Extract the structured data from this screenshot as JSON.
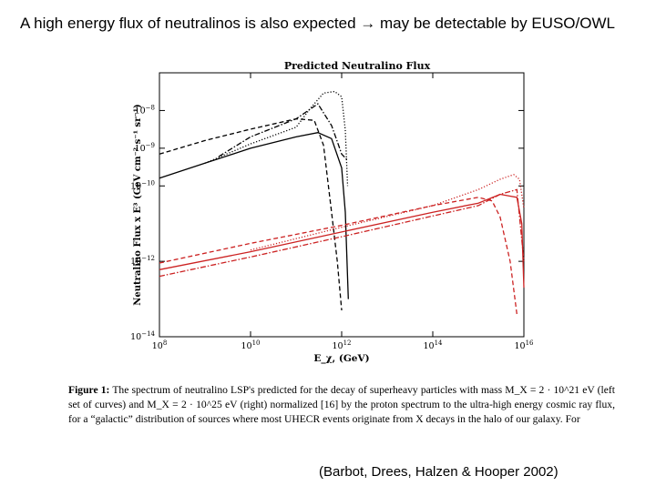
{
  "slide": {
    "title": "A high energy flux of neutralinos is also expected → may be detectable by EUSO/OWL",
    "citation": "(Barbot, Drees, Halzen & Hooper 2002)"
  },
  "caption": {
    "label": "Figure 1:",
    "text": "The spectrum of neutralino LSP's predicted for the decay of superheavy particles with mass M_X = 2 · 10^21 eV (left set of curves) and M_X = 2 · 10^25 eV (right) normalized [16] by the proton spectrum to the ultra-high energy cosmic ray flux, for a “galactic” distribution of sources where most UHECR events originate from X decays in the halo of our galaxy. For"
  },
  "chart_data": {
    "type": "line",
    "title": "Predicted Neutralino Flux",
    "xlabel": "E_χ, (GeV)",
    "ylabel": "Neutralino Flux x E³ (GeV cm⁻² s⁻¹ sr⁻¹)",
    "xscale": "log",
    "yscale": "log",
    "xlim": [
      100000000.0,
      1e+16
    ],
    "ylim": [
      1e-14,
      1e-07
    ],
    "xticks": [
      {
        "value": 100000000.0,
        "base": "10",
        "exp": "8"
      },
      {
        "value": 10000000000.0,
        "base": "10",
        "exp": "10"
      },
      {
        "value": 1000000000000.0,
        "base": "10",
        "exp": "12"
      },
      {
        "value": 100000000000000.0,
        "base": "10",
        "exp": "14"
      },
      {
        "value": 1e+16,
        "base": "10",
        "exp": "16"
      }
    ],
    "yticks": [
      {
        "value": 1e-14,
        "base": "10",
        "exp": "−14"
      },
      {
        "value": 1e-12,
        "base": "10",
        "exp": "−12"
      },
      {
        "value": 1e-10,
        "base": "10",
        "exp": "−10"
      },
      {
        "value": 1e-09,
        "base": "10",
        "exp": "−9"
      },
      {
        "value": 1e-08,
        "base": "10",
        "exp": "−8"
      }
    ],
    "colors": {
      "left": "#000000",
      "right": "#cc2222"
    },
    "series": [
      {
        "group": "left",
        "style": "solid",
        "color": "#000000",
        "x": [
          100000000.0,
          1000000000.0,
          10000000000.0,
          100000000000.0,
          300000000000.0,
          600000000000.0,
          1000000000000.0,
          1200000000000.0,
          1400000000000.0
        ],
        "y": [
          1.6e-10,
          4e-10,
          1e-09,
          2e-09,
          2.6e-09,
          1.8e-09,
          3e-10,
          2e-11,
          1e-13
        ]
      },
      {
        "group": "left",
        "style": "dashed",
        "color": "#000000",
        "x": [
          100000000.0,
          1000000000.0,
          10000000000.0,
          100000000000.0,
          250000000000.0,
          400000000000.0,
          600000000000.0,
          800000000000.0,
          1000000000000.0
        ],
        "y": [
          7e-10,
          1.6e-09,
          3.2e-09,
          6e-09,
          5.5e-09,
          1.2e-09,
          2e-11,
          1e-12,
          5e-14
        ]
      },
      {
        "group": "left",
        "style": "dotted",
        "color": "#000000",
        "x": [
          1000000000.0,
          10000000000.0,
          100000000000.0,
          200000000000.0,
          400000000000.0,
          700000000000.0,
          1000000000000.0,
          1200000000000.0,
          1350000000000.0
        ],
        "y": [
          4e-10,
          1.3e-09,
          3.6e-09,
          1.1e-08,
          2.9e-08,
          3.2e-08,
          2.3e-08,
          3e-09,
          1e-10
        ]
      },
      {
        "group": "left",
        "style": "dashdot",
        "color": "#000000",
        "x": [
          2000000000.0,
          10000000000.0,
          100000000000.0,
          300000000000.0,
          600000000000.0,
          800000000000.0,
          1000000000000.0,
          1300000000000.0
        ],
        "y": [
          6e-10,
          2e-09,
          6e-09,
          1.5e-08,
          4e-09,
          1.5e-09,
          7e-10,
          5e-10
        ]
      },
      {
        "group": "right",
        "style": "solid",
        "color": "#cc2222",
        "x": [
          100000000.0,
          10000000000.0,
          1000000000000.0,
          100000000000000.0,
          1000000000000000.0,
          3000000000000000.0,
          7000000000000000.0,
          9000000000000000.0,
          1e+16
        ],
        "y": [
          6e-13,
          1.8e-12,
          6e-12,
          2e-11,
          3.5e-11,
          6e-11,
          5e-11,
          1e-11,
          2e-13
        ]
      },
      {
        "group": "right",
        "style": "dashed",
        "color": "#cc2222",
        "x": [
          100000000.0,
          10000000000.0,
          1000000000000.0,
          100000000000000.0,
          1000000000000000.0,
          2000000000000000.0,
          3000000000000000.0,
          5000000000000000.0,
          7000000000000000.0
        ],
        "y": [
          9e-13,
          3e-12,
          9e-12,
          3e-11,
          5e-11,
          4e-11,
          1.5e-11,
          1e-12,
          4e-14
        ]
      },
      {
        "group": "right",
        "style": "dotted",
        "color": "#cc2222",
        "x": [
          10000000000.0,
          1000000000000.0,
          100000000000000.0,
          1000000000000000.0,
          3000000000000000.0,
          6000000000000000.0,
          8000000000000000.0,
          1e+16
        ],
        "y": [
          2e-12,
          8e-12,
          3e-11,
          8e-11,
          1.5e-10,
          2e-10,
          1.5e-10,
          2.5e-11
        ]
      },
      {
        "group": "right",
        "style": "dashdot",
        "color": "#cc2222",
        "x": [
          100000000.0,
          10000000000.0,
          1000000000000.0,
          100000000000000.0,
          1000000000000000.0,
          3000000000000000.0,
          7000000000000000.0,
          1e+16
        ],
        "y": [
          4e-13,
          1.3e-12,
          4.5e-12,
          1.6e-11,
          3e-11,
          6e-11,
          8e-11,
          1e-12
        ]
      }
    ]
  }
}
